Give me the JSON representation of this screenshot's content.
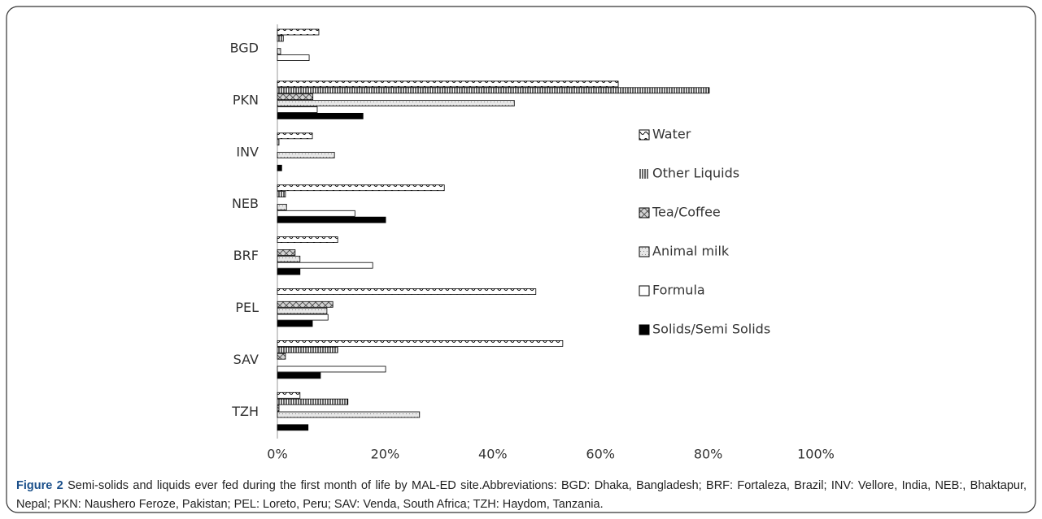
{
  "chart_data": {
    "type": "bar",
    "orientation": "horizontal",
    "categories": [
      "BGD",
      "PKN",
      "INV",
      "NEB",
      "BRF",
      "PEL",
      "SAV",
      "TZH"
    ],
    "series": [
      {
        "name": "Water",
        "color": "#000000",
        "values": [
          7.7,
          63.3,
          6.5,
          31,
          11.2,
          48,
          53,
          4.2
        ]
      },
      {
        "name": "Other Liquids",
        "color": "#000000",
        "values": [
          1.1,
          80.2,
          0.3,
          1.5,
          0,
          0,
          11.2,
          13.1
        ]
      },
      {
        "name": "Tea/Coffee",
        "color": "#555555",
        "values": [
          0,
          6.6,
          0,
          0,
          3.3,
          10.3,
          1.5,
          0.3
        ]
      },
      {
        "name": "Animal milk",
        "color": "#888888",
        "values": [
          0.6,
          44,
          10.6,
          1.7,
          4.2,
          9.2,
          0,
          26.4
        ]
      },
      {
        "name": "Formula",
        "color": "#000000",
        "values": [
          5.9,
          7.4,
          0,
          14.4,
          17.7,
          9.4,
          20.1,
          0
        ]
      },
      {
        "name": "Solids/Semi Solids",
        "color": "#000000",
        "values": [
          0,
          15.9,
          0.8,
          20.1,
          4.2,
          6.5,
          8,
          5.7
        ]
      }
    ],
    "xlim": [
      0,
      100
    ],
    "xticks": [
      {
        "value": 0,
        "label": "0%"
      },
      {
        "value": 20,
        "label": "20%"
      },
      {
        "value": 40,
        "label": "40%"
      },
      {
        "value": 60,
        "label": "60%"
      },
      {
        "value": 80,
        "label": "80%"
      },
      {
        "value": 100,
        "label": "100%"
      }
    ],
    "legend": "right"
  },
  "caption": {
    "label": "Figure 2",
    "text": " Semi-solids and liquids ever fed during the first month of life by MAL-ED site.Abbreviations: BGD: Dhaka, Bangladesh; BRF: Fortaleza, Brazil; INV: Vellore, India, NEB:, Bhaktapur, Nepal; PKN: Naushero Feroze, Pakistan; PEL: Loreto, Peru; SAV: Venda, South Africa; TZH: Haydom, Tanzania."
  }
}
